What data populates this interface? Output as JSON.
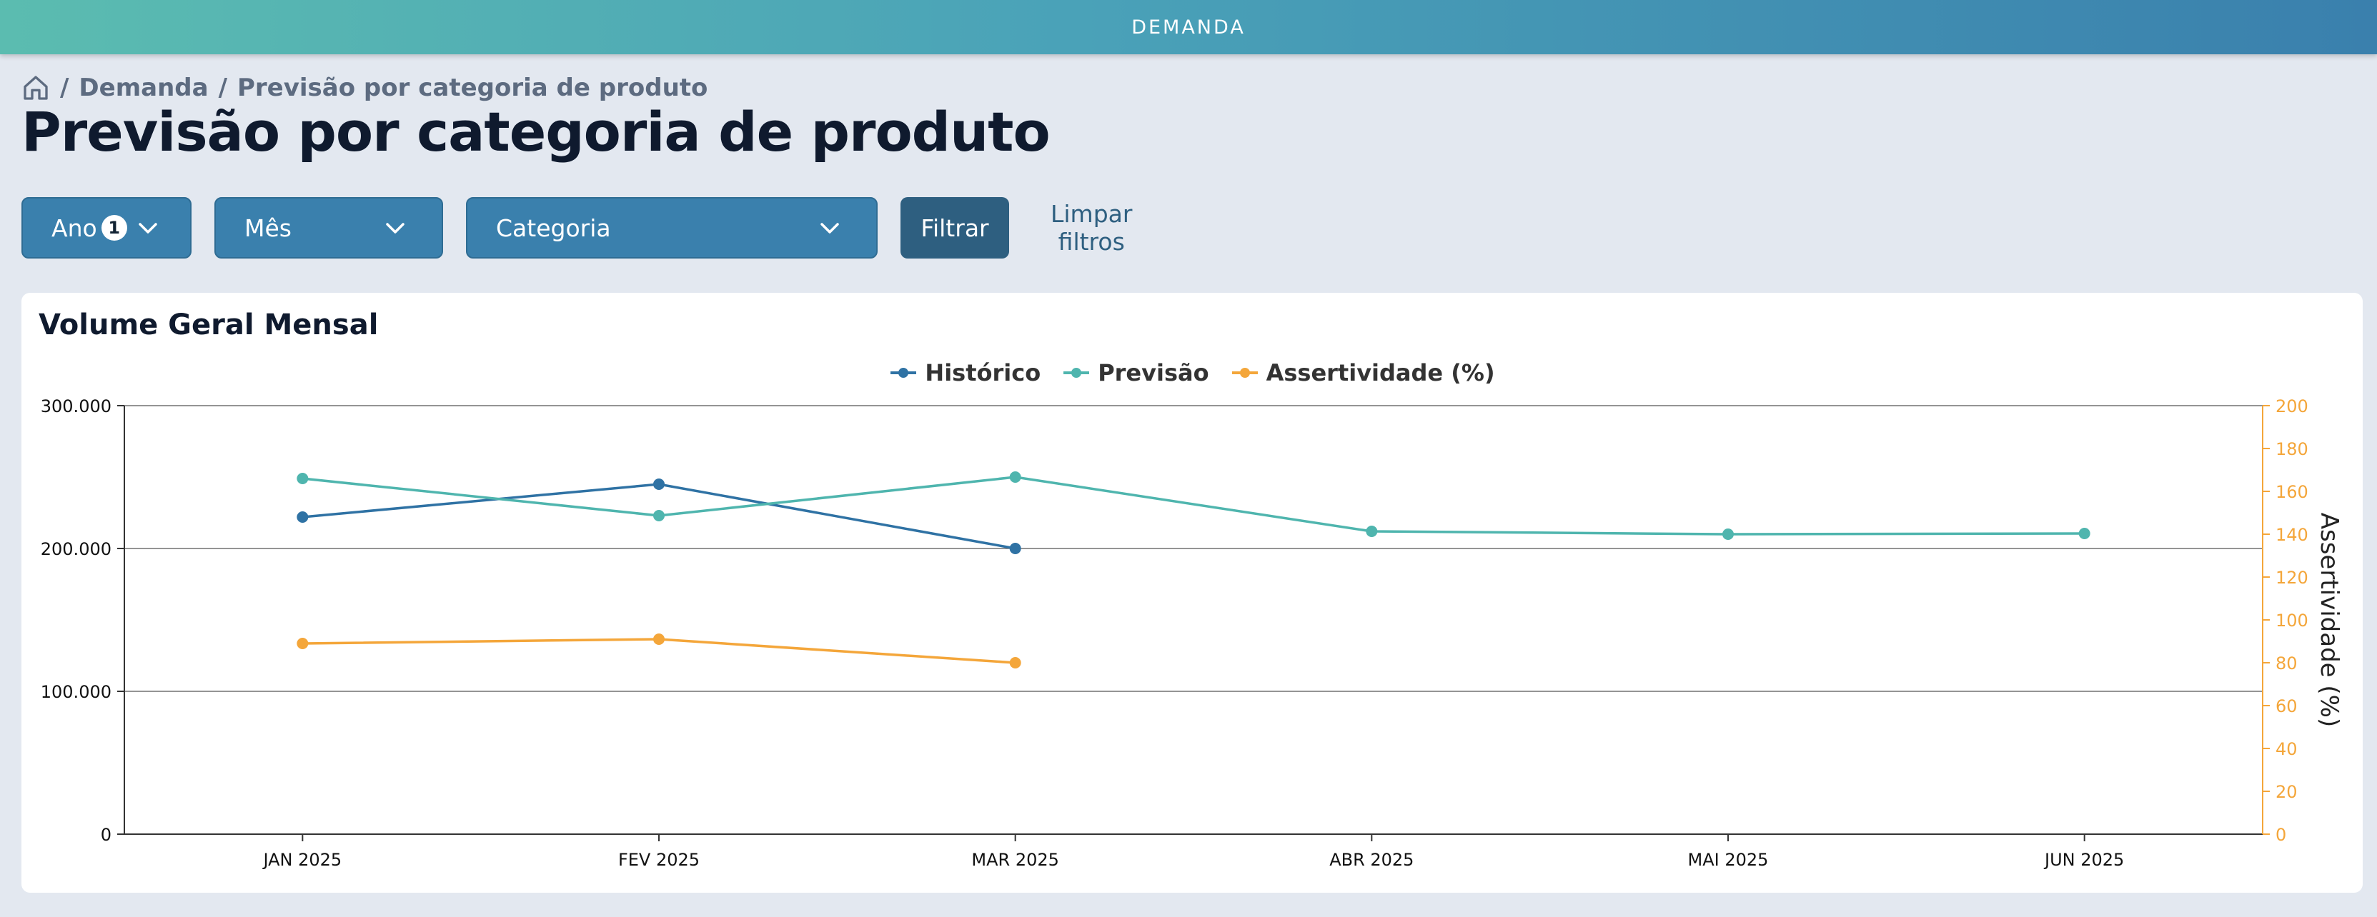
{
  "topbar": {
    "title": "DEMANDA"
  },
  "breadcrumb": {
    "items": [
      "Demanda",
      "Previsão por categoria de produto"
    ]
  },
  "page": {
    "title": "Previsão por categoria de produto"
  },
  "filters": {
    "year": {
      "label": "Ano",
      "count": "1"
    },
    "month": {
      "label": "Mês"
    },
    "category": {
      "label": "Categoria"
    },
    "apply_label": "Filtrar",
    "clear_label": "Limpar filtros"
  },
  "card": {
    "title": "Volume Geral Mensal"
  },
  "colors": {
    "historico": "#2f72a4",
    "previsao": "#4fb5ae",
    "assertividade": "#f4a63a"
  },
  "chart_data": {
    "type": "line",
    "categories": [
      "JAN 2025",
      "FEV 2025",
      "MAR 2025",
      "ABR 2025",
      "MAI 2025",
      "JUN 2025"
    ],
    "series": [
      {
        "name": "Histórico",
        "axis": "left",
        "values": [
          222000,
          245000,
          200000,
          null,
          null,
          null
        ]
      },
      {
        "name": "Previsão",
        "axis": "left",
        "values": [
          249000,
          223000,
          250000,
          212000,
          210000,
          210500
        ]
      },
      {
        "name": "Assertividade (%)",
        "axis": "right",
        "values": [
          89,
          91,
          80,
          null,
          null,
          null
        ]
      }
    ],
    "y_left": {
      "min": 0,
      "max": 300000,
      "ticks": [
        "0",
        "100.000",
        "200.000",
        "300.000"
      ]
    },
    "y_right": {
      "min": 0,
      "max": 200,
      "label": "Assertividade (%)",
      "ticks": [
        "0",
        "20",
        "40",
        "60",
        "80",
        "100",
        "120",
        "140",
        "160",
        "180",
        "200"
      ]
    },
    "legend_position": "top-center",
    "grid": "horizontal"
  }
}
